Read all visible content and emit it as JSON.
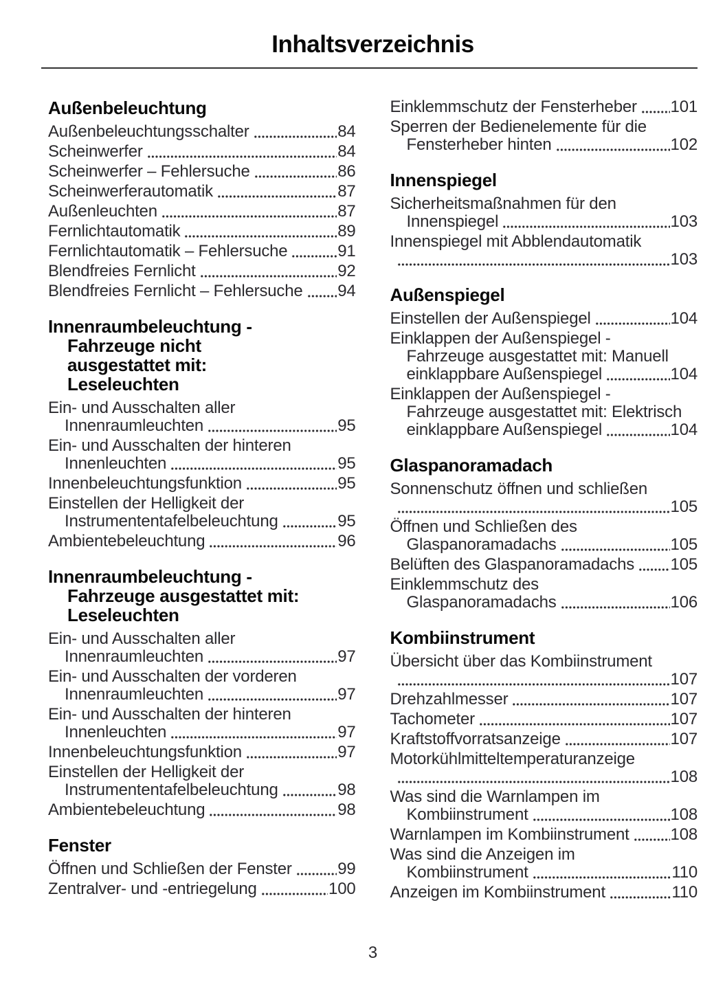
{
  "page": {
    "title": "Inhaltsverzeichnis",
    "footer_page_number": "3"
  },
  "colors": {
    "text": "#2b2a2e",
    "heading": "#0a0a0a",
    "rule": "#333333",
    "background": "#ffffff"
  },
  "toc": {
    "columns": [
      {
        "sections": [
          {
            "heading_lines": [
              "Außenbeleuchtung"
            ],
            "entries": [
              {
                "lines": [],
                "last": "Außenbeleuchtungsschalter",
                "page": "84"
              },
              {
                "lines": [],
                "last": "Scheinwerfer",
                "page": "84"
              },
              {
                "lines": [],
                "last": "Scheinwerfer – Fehlersuche",
                "page": "86"
              },
              {
                "lines": [],
                "last": "Scheinwerferautomatik",
                "page": "87"
              },
              {
                "lines": [],
                "last": "Außenleuchten",
                "page": "87"
              },
              {
                "lines": [],
                "last": "Fernlichtautomatik",
                "page": "89"
              },
              {
                "lines": [],
                "last": "Fernlichtautomatik – Fehlersuche",
                "page": "91"
              },
              {
                "lines": [],
                "last": "Blendfreies Fernlicht",
                "page": "92"
              },
              {
                "lines": [],
                "last": "Blendfreies Fernlicht – Fehlersuche",
                "page": "94"
              }
            ]
          },
          {
            "heading_lines": [
              "Innenraumbeleuchtung -",
              "Fahrzeuge nicht",
              "ausgestattet mit:",
              "Leseleuchten"
            ],
            "entries": [
              {
                "lines": [
                  "Ein- und Ausschalten aller"
                ],
                "last": "Innenraumleuchten",
                "page": "95"
              },
              {
                "lines": [
                  "Ein- und Ausschalten der hinteren"
                ],
                "last": "Innenleuchten",
                "page": "95"
              },
              {
                "lines": [],
                "last": "Innenbeleuchtungsfunktion",
                "page": "95"
              },
              {
                "lines": [
                  "Einstellen der Helligkeit der"
                ],
                "last": "Instrumententafelbeleuchtung",
                "page": "95"
              },
              {
                "lines": [],
                "last": "Ambientebeleuchtung",
                "page": "96"
              }
            ]
          },
          {
            "heading_lines": [
              "Innenraumbeleuchtung -",
              "Fahrzeuge ausgestattet mit:",
              "Leseleuchten"
            ],
            "entries": [
              {
                "lines": [
                  "Ein- und Ausschalten aller"
                ],
                "last": "Innenraumleuchten",
                "page": "97"
              },
              {
                "lines": [
                  "Ein- und Ausschalten der vorderen"
                ],
                "last": "Innenraumleuchten",
                "page": "97"
              },
              {
                "lines": [
                  "Ein- und Ausschalten der hinteren"
                ],
                "last": "Innenleuchten",
                "page": "97"
              },
              {
                "lines": [],
                "last": "Innenbeleuchtungsfunktion",
                "page": "97"
              },
              {
                "lines": [
                  "Einstellen der Helligkeit der"
                ],
                "last": "Instrumententafelbeleuchtung",
                "page": "98"
              },
              {
                "lines": [],
                "last": "Ambientebeleuchtung",
                "page": "98"
              }
            ]
          },
          {
            "heading_lines": [
              "Fenster"
            ],
            "entries": [
              {
                "lines": [],
                "last": "Öffnen und Schließen der Fenster",
                "page": "99"
              },
              {
                "lines": [],
                "last": "Zentralver- und -entriegelung",
                "page": "100"
              }
            ]
          }
        ]
      },
      {
        "sections": [
          {
            "heading_lines": [],
            "entries": [
              {
                "lines": [],
                "last": "Einklemmschutz der Fensterheber",
                "page": "101"
              },
              {
                "lines": [
                  "Sperren der Bedienelemente für die"
                ],
                "last": "Fensterheber hinten",
                "page": "102"
              }
            ]
          },
          {
            "heading_lines": [
              "Innenspiegel"
            ],
            "entries": [
              {
                "lines": [
                  "Sicherheitsmaßnahmen für den"
                ],
                "last": "Innenspiegel",
                "page": "103"
              },
              {
                "lines": [
                  "Innenspiegel mit Abblendautomatik"
                ],
                "last": "",
                "page": "103"
              }
            ]
          },
          {
            "heading_lines": [
              "Außenspiegel"
            ],
            "entries": [
              {
                "lines": [],
                "last": "Einstellen der Außenspiegel",
                "page": "104"
              },
              {
                "lines": [
                  "Einklappen der Außenspiegel -",
                  "Fahrzeuge ausgestattet mit: Manuell"
                ],
                "last": "einklappbare Außenspiegel",
                "page": "104"
              },
              {
                "lines": [
                  "Einklappen der Außenspiegel -",
                  "Fahrzeuge ausgestattet mit: Elektrisch"
                ],
                "last": "einklappbare Außenspiegel",
                "page": "104"
              }
            ]
          },
          {
            "heading_lines": [
              "Glaspanoramadach"
            ],
            "entries": [
              {
                "lines": [
                  "Sonnenschutz öffnen und schließen"
                ],
                "last": "",
                "page": "105"
              },
              {
                "lines": [
                  "Öffnen und Schließen des"
                ],
                "last": "Glaspanoramadachs",
                "page": "105"
              },
              {
                "lines": [],
                "last": "Belüften des Glaspanoramadachs",
                "page": "105"
              },
              {
                "lines": [
                  "Einklemmschutz des"
                ],
                "last": "Glaspanoramadachs",
                "page": "106"
              }
            ]
          },
          {
            "heading_lines": [
              "Kombiinstrument"
            ],
            "entries": [
              {
                "lines": [
                  "Übersicht über das Kombiinstrument"
                ],
                "last": "",
                "page": "107"
              },
              {
                "lines": [],
                "last": "Drehzahlmesser",
                "page": "107"
              },
              {
                "lines": [],
                "last": "Tachometer",
                "page": "107"
              },
              {
                "lines": [],
                "last": "Kraftstoffvorratsanzeige",
                "page": "107"
              },
              {
                "lines": [
                  "Motorkühlmitteltemperaturanzeige"
                ],
                "last": "",
                "page": "108"
              },
              {
                "lines": [
                  "Was sind die Warnlampen im"
                ],
                "last": "Kombiinstrument",
                "page": "108"
              },
              {
                "lines": [],
                "last": "Warnlampen im Kombiinstrument",
                "page": "108"
              },
              {
                "lines": [
                  "Was sind die Anzeigen im"
                ],
                "last": "Kombiinstrument",
                "page": "110"
              },
              {
                "lines": [],
                "last": "Anzeigen im Kombiinstrument",
                "page": "110"
              }
            ]
          }
        ]
      }
    ]
  }
}
